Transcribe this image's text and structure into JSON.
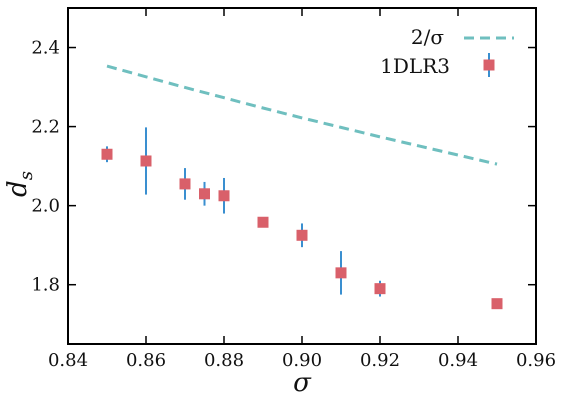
{
  "chart_data": {
    "type": "scatter",
    "xlabel": "σ",
    "ylabel": "d_s",
    "xlim": [
      0.84,
      0.96
    ],
    "ylim": [
      1.65,
      2.5
    ],
    "xticks": [
      0.84,
      0.86,
      0.88,
      0.9,
      0.92,
      0.94,
      0.96
    ],
    "xtick_labels": [
      "0.84",
      "0.86",
      "0.88",
      "0.90",
      "0.92",
      "0.94",
      "0.96"
    ],
    "yticks": [
      1.8,
      2.0,
      2.2,
      2.4
    ],
    "ytick_labels": [
      "1.8",
      "2.0",
      "2.2",
      "2.4"
    ],
    "legend_position": "top-right",
    "series": [
      {
        "name": "2/σ",
        "kind": "dashed-line",
        "color": "#6fbfbf",
        "x": [
          0.85,
          0.86,
          0.87,
          0.88,
          0.89,
          0.9,
          0.91,
          0.92,
          0.93,
          0.94,
          0.95
        ],
        "y": [
          2.353,
          2.326,
          2.299,
          2.273,
          2.247,
          2.222,
          2.198,
          2.174,
          2.151,
          2.128,
          2.105
        ]
      },
      {
        "name": "1DLR3",
        "kind": "markers-with-errorbars",
        "color": "#d9606a",
        "errorbar_color": "#3a8fd0",
        "x": [
          0.85,
          0.86,
          0.87,
          0.875,
          0.88,
          0.89,
          0.9,
          0.91,
          0.92,
          0.95
        ],
        "y": [
          2.13,
          2.113,
          2.055,
          2.03,
          2.025,
          1.958,
          1.925,
          1.83,
          1.79,
          1.752
        ],
        "yerr": [
          0.02,
          0.085,
          0.04,
          0.03,
          0.045,
          0.01,
          0.03,
          0.055,
          0.02,
          0.0
        ]
      }
    ]
  }
}
